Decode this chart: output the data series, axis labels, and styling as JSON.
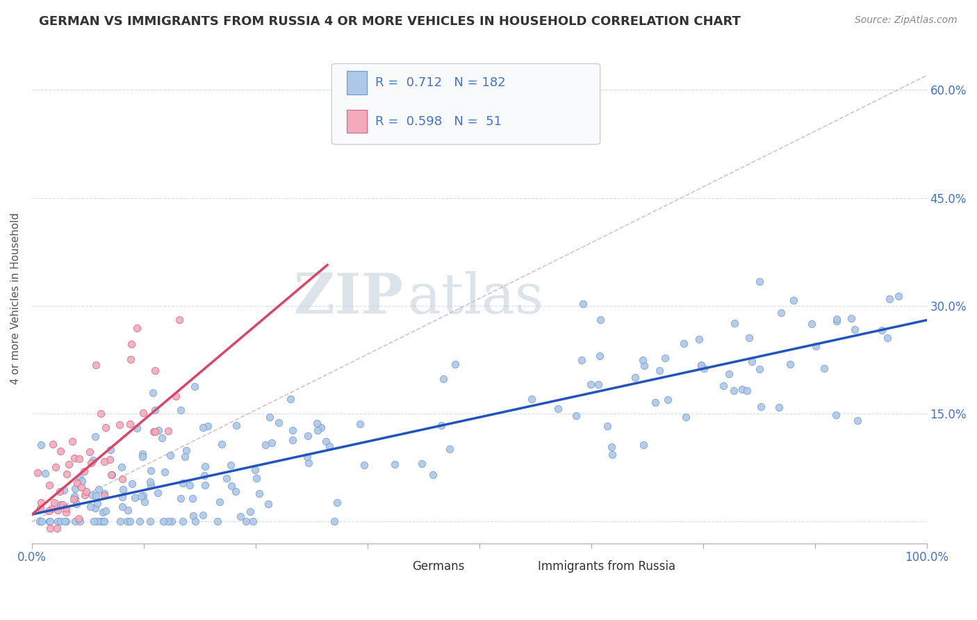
{
  "title": "GERMAN VS IMMIGRANTS FROM RUSSIA 4 OR MORE VEHICLES IN HOUSEHOLD CORRELATION CHART",
  "source": "Source: ZipAtlas.com",
  "ylabel": "4 or more Vehicles in Household",
  "y_ticks": [
    0.0,
    0.15,
    0.3,
    0.45,
    0.6
  ],
  "y_tick_labels": [
    "",
    "15.0%",
    "30.0%",
    "45.0%",
    "60.0%"
  ],
  "x_range": [
    0.0,
    1.0
  ],
  "y_range": [
    -0.03,
    0.65
  ],
  "german_R": 0.712,
  "german_N": 182,
  "russia_R": 0.598,
  "russia_N": 51,
  "german_color": "#adc8e8",
  "russia_color": "#f5aabb",
  "german_line_color": "#2255bb",
  "russia_line_color": "#dd4466",
  "german_scatter_edge": "#7099cc",
  "russia_scatter_edge": "#cc6688",
  "diag_color": "#c8b8cc",
  "watermark_zip": "ZIP",
  "watermark_atlas": "atlas",
  "watermark_color_zip": "#c8d4e0",
  "watermark_color_atlas": "#b8c8d4",
  "background": "#ffffff",
  "title_color": "#333333",
  "axis_label_color": "#4472c4",
  "legend_text_color": "#4472c4",
  "german_trend_slope": 0.27,
  "german_trend_intercept": 0.01,
  "russia_trend_slope": 1.05,
  "russia_trend_intercept": 0.01,
  "seed": 42
}
